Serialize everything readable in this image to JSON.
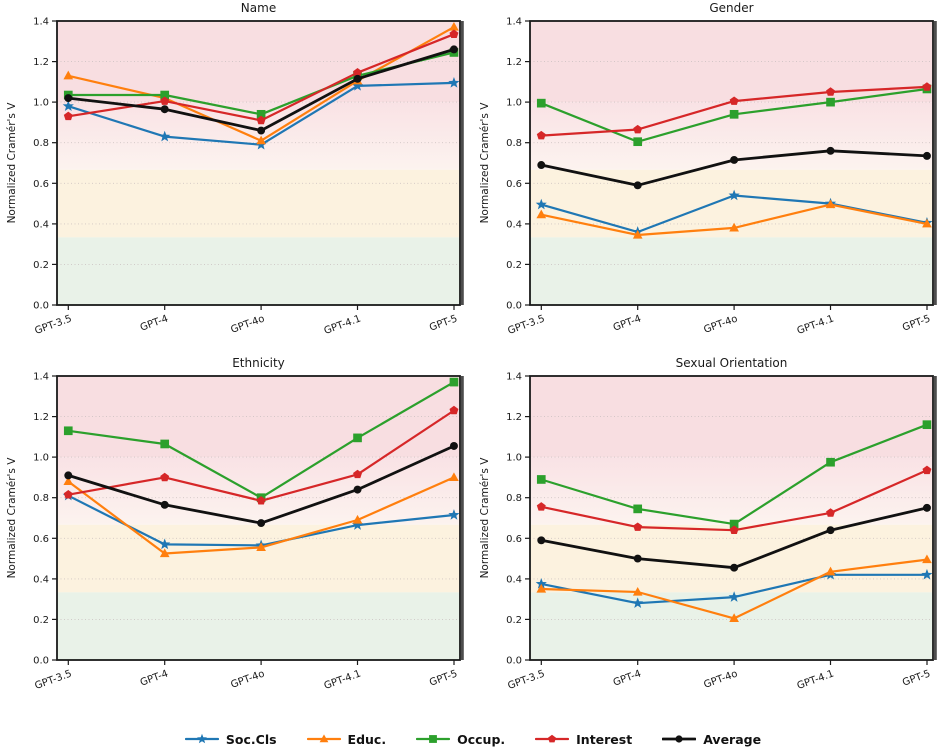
{
  "figure": {
    "ylabel": "Normalized Cramér's V",
    "yticks": [
      "0.0",
      "0.2",
      "0.4",
      "0.6",
      "0.8",
      "1.0",
      "1.2",
      "1.4"
    ],
    "ylim": [
      0,
      1.4
    ],
    "grid_color": "#c9bfbf",
    "frame_color": "#1a1a1a",
    "frame_shadow_color": "#4d4d4d",
    "bands": {
      "red": {
        "from": 1.0,
        "to": 1.4,
        "color": "#f8dee1"
      },
      "pink_fade": {
        "from": 0.6667,
        "to": 1.0,
        "color_top": "#f9e2e5",
        "color_bottom": "#fcf3ef"
      },
      "yellow": {
        "from": 0.3333,
        "to": 0.6667,
        "color": "#fcf2df"
      },
      "green": {
        "from": 0.0,
        "to": 0.3333,
        "color": "#e9f2e8"
      }
    }
  },
  "legend": {
    "items": [
      {
        "label": "Soc.Cls",
        "color": "#1f77b4",
        "marker": "star"
      },
      {
        "label": "Educ.",
        "color": "#ff7f0e",
        "marker": "triangle"
      },
      {
        "label": "Occup.",
        "color": "#2ca02c",
        "marker": "square"
      },
      {
        "label": "Interest",
        "color": "#d62728",
        "marker": "pentagon"
      },
      {
        "label": "Average",
        "color": "#111111",
        "marker": "circle"
      }
    ]
  },
  "chart_data": [
    {
      "type": "line",
      "title": "Name",
      "xlabel": "",
      "ylabel": "Normalized Cramér's V",
      "ylim": [
        0,
        1.4
      ],
      "grid": true,
      "categories": [
        "GPT-3.5",
        "GPT-4",
        "GPT-4o",
        "GPT-4.1",
        "GPT-5"
      ],
      "series": [
        {
          "name": "Soc.Cls",
          "color": "#1f77b4",
          "marker": "star",
          "values": [
            0.98,
            0.83,
            0.79,
            1.08,
            1.095
          ]
        },
        {
          "name": "Educ.",
          "color": "#ff7f0e",
          "marker": "triangle",
          "values": [
            1.13,
            1.02,
            0.81,
            1.105,
            1.37
          ]
        },
        {
          "name": "Occup.",
          "color": "#2ca02c",
          "marker": "square",
          "values": [
            1.035,
            1.035,
            0.94,
            1.13,
            1.245
          ]
        },
        {
          "name": "Interest",
          "color": "#d62728",
          "marker": "pentagon",
          "values": [
            0.93,
            1.005,
            0.91,
            1.145,
            1.335
          ]
        },
        {
          "name": "Average",
          "color": "#111111",
          "marker": "circle",
          "values": [
            1.02,
            0.965,
            0.86,
            1.115,
            1.26
          ]
        }
      ]
    },
    {
      "type": "line",
      "title": "Gender",
      "xlabel": "",
      "ylabel": "Normalized Cramér's V",
      "ylim": [
        0,
        1.4
      ],
      "grid": true,
      "categories": [
        "GPT-3.5",
        "GPT-4",
        "GPT-4o",
        "GPT-4.1",
        "GPT-5"
      ],
      "series": [
        {
          "name": "Soc.Cls",
          "color": "#1f77b4",
          "marker": "star",
          "values": [
            0.495,
            0.36,
            0.54,
            0.5,
            0.405
          ]
        },
        {
          "name": "Educ.",
          "color": "#ff7f0e",
          "marker": "triangle",
          "values": [
            0.445,
            0.345,
            0.38,
            0.495,
            0.4
          ]
        },
        {
          "name": "Occup.",
          "color": "#2ca02c",
          "marker": "square",
          "values": [
            0.995,
            0.805,
            0.94,
            1.0,
            1.065
          ]
        },
        {
          "name": "Interest",
          "color": "#d62728",
          "marker": "pentagon",
          "values": [
            0.835,
            0.865,
            1.005,
            1.05,
            1.075
          ]
        },
        {
          "name": "Average",
          "color": "#111111",
          "marker": "circle",
          "values": [
            0.69,
            0.59,
            0.715,
            0.76,
            0.735
          ]
        }
      ]
    },
    {
      "type": "line",
      "title": "Ethnicity",
      "xlabel": "",
      "ylabel": "Normalized Cramér's V",
      "ylim": [
        0,
        1.4
      ],
      "grid": true,
      "categories": [
        "GPT-3.5",
        "GPT-4",
        "GPT-4o",
        "GPT-4.1",
        "GPT-5"
      ],
      "series": [
        {
          "name": "Soc.Cls",
          "color": "#1f77b4",
          "marker": "star",
          "values": [
            0.81,
            0.57,
            0.565,
            0.665,
            0.715
          ]
        },
        {
          "name": "Educ.",
          "color": "#ff7f0e",
          "marker": "triangle",
          "values": [
            0.88,
            0.525,
            0.555,
            0.69,
            0.9
          ]
        },
        {
          "name": "Occup.",
          "color": "#2ca02c",
          "marker": "square",
          "values": [
            1.13,
            1.065,
            0.8,
            1.095,
            1.37
          ]
        },
        {
          "name": "Interest",
          "color": "#d62728",
          "marker": "pentagon",
          "values": [
            0.815,
            0.9,
            0.785,
            0.915,
            1.23
          ]
        },
        {
          "name": "Average",
          "color": "#111111",
          "marker": "circle",
          "values": [
            0.91,
            0.765,
            0.675,
            0.84,
            1.055
          ]
        }
      ]
    },
    {
      "type": "line",
      "title": "Sexual Orientation",
      "xlabel": "",
      "ylabel": "Normalized Cramér's V",
      "ylim": [
        0,
        1.4
      ],
      "grid": true,
      "categories": [
        "GPT-3.5",
        "GPT-4",
        "GPT-4o",
        "GPT-4.1",
        "GPT-5"
      ],
      "series": [
        {
          "name": "Soc.Cls",
          "color": "#1f77b4",
          "marker": "star",
          "values": [
            0.375,
            0.28,
            0.31,
            0.42,
            0.42
          ]
        },
        {
          "name": "Educ.",
          "color": "#ff7f0e",
          "marker": "triangle",
          "values": [
            0.35,
            0.335,
            0.205,
            0.435,
            0.495
          ]
        },
        {
          "name": "Occup.",
          "color": "#2ca02c",
          "marker": "square",
          "values": [
            0.89,
            0.745,
            0.67,
            0.975,
            1.16
          ]
        },
        {
          "name": "Interest",
          "color": "#d62728",
          "marker": "pentagon",
          "values": [
            0.755,
            0.655,
            0.64,
            0.725,
            0.935
          ]
        },
        {
          "name": "Average",
          "color": "#111111",
          "marker": "circle",
          "values": [
            0.59,
            0.5,
            0.455,
            0.64,
            0.75
          ]
        }
      ]
    }
  ]
}
